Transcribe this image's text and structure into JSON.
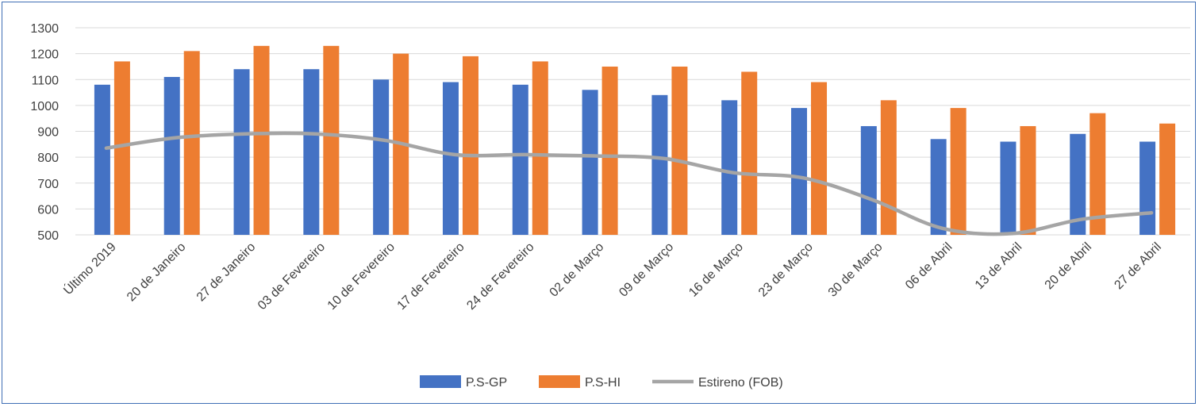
{
  "chart_data": {
    "type": "bar",
    "title": "",
    "xlabel": "",
    "ylabel": "",
    "ylim": [
      500,
      1300
    ],
    "yticks": [
      500,
      600,
      700,
      800,
      900,
      1000,
      1100,
      1200,
      1300
    ],
    "grid": true,
    "legend_position": "bottom",
    "categories": [
      "Último 2019",
      "20 de Janeiro",
      "27 de Janeiro",
      "03 de Fevereiro",
      "10 de Fevereiro",
      "17 de Fevereiro",
      "24 de Fevereiro",
      "02 de Março",
      "09 de Março",
      "16 de Março",
      "23 de Março",
      "30 de Março",
      "06 de Abril",
      "13 de Abril",
      "20 de Abril",
      "27 de Abril"
    ],
    "series": [
      {
        "name": "P.S-GP",
        "type": "bar",
        "color": "#4472c4",
        "values": [
          1080,
          1110,
          1140,
          1140,
          1100,
          1090,
          1080,
          1060,
          1040,
          1020,
          990,
          920,
          870,
          860,
          890,
          860
        ]
      },
      {
        "name": "P.S-HI",
        "type": "bar",
        "color": "#ed7d31",
        "values": [
          1170,
          1210,
          1230,
          1230,
          1200,
          1190,
          1170,
          1150,
          1150,
          1130,
          1090,
          1020,
          990,
          920,
          970,
          930
        ]
      },
      {
        "name": "Estireno (FOB)",
        "type": "line",
        "color": "#a5a5a5",
        "values": [
          835,
          875,
          890,
          890,
          865,
          810,
          810,
          805,
          795,
          740,
          720,
          635,
          525,
          505,
          560,
          585
        ]
      }
    ]
  }
}
